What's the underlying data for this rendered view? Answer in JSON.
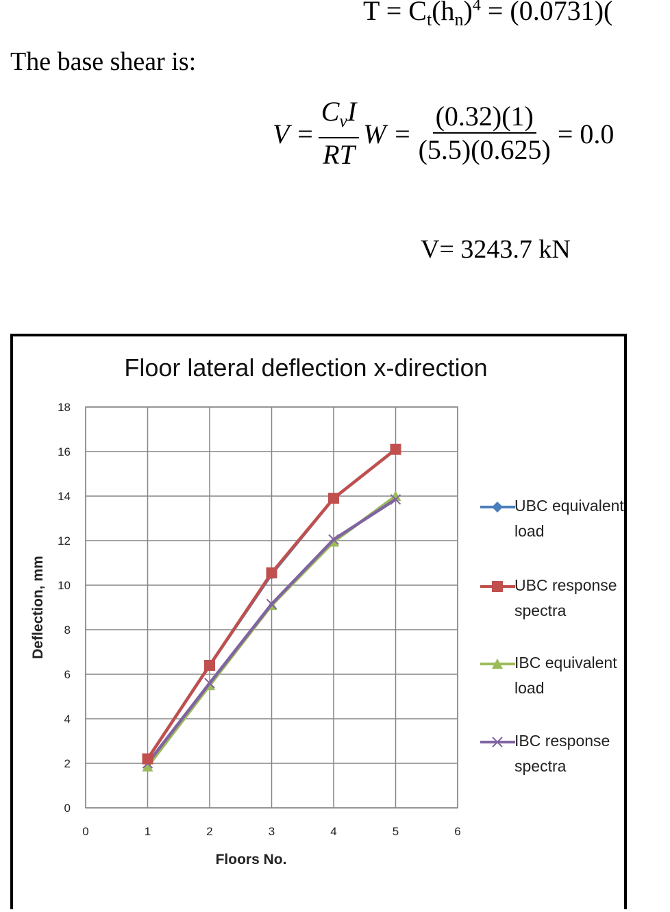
{
  "equations": {
    "period": {
      "lhs": "T = C",
      "sub1": "t",
      "mid": "(h",
      "sub2": "n",
      "close": ")",
      "exp": "4",
      "rhs": "  = (0.0731)("
    },
    "intro": "The base shear is:",
    "base_shear": {
      "lhs": "V =",
      "frac1_num": "C",
      "frac1_num_sub": "v",
      "frac1_num_tail": "I",
      "frac1_den": "RT",
      "w": "W =",
      "frac2_num": "(0.32)(1)",
      "frac2_den": "(5.5)(0.625)",
      "rhs": "= 0.0"
    },
    "result": "V= 3243.7 kN"
  },
  "chart_data": {
    "type": "line",
    "title": "Floor lateral deflection x-direction",
    "xlabel": "Floors No.",
    "ylabel": "Deflection, mm",
    "xlim": [
      0,
      6
    ],
    "ylim": [
      0,
      18
    ],
    "xticks": [
      0,
      1,
      2,
      3,
      4,
      5,
      6
    ],
    "yticks": [
      0,
      2,
      4,
      6,
      8,
      10,
      12,
      14,
      16,
      18
    ],
    "grid": true,
    "legend_position": "right",
    "x": [
      1,
      2,
      3,
      4,
      5
    ],
    "series": [
      {
        "name": "UBC equivalent load",
        "values": [
          2.2,
          6.4,
          10.5,
          13.9,
          16.1
        ],
        "color": "#4a7ebb",
        "marker": "diamond"
      },
      {
        "name": "UBC response spectra",
        "values": [
          2.2,
          6.4,
          10.55,
          13.9,
          16.1
        ],
        "color": "#c0504d",
        "marker": "square"
      },
      {
        "name": "IBC equivalent load",
        "values": [
          1.85,
          5.5,
          9.1,
          11.95,
          14.0
        ],
        "color": "#9bbb59",
        "marker": "triangle"
      },
      {
        "name": "IBC response spectra",
        "values": [
          2.0,
          5.6,
          9.15,
          12.05,
          13.85
        ],
        "color": "#8064a2",
        "marker": "x"
      }
    ]
  }
}
